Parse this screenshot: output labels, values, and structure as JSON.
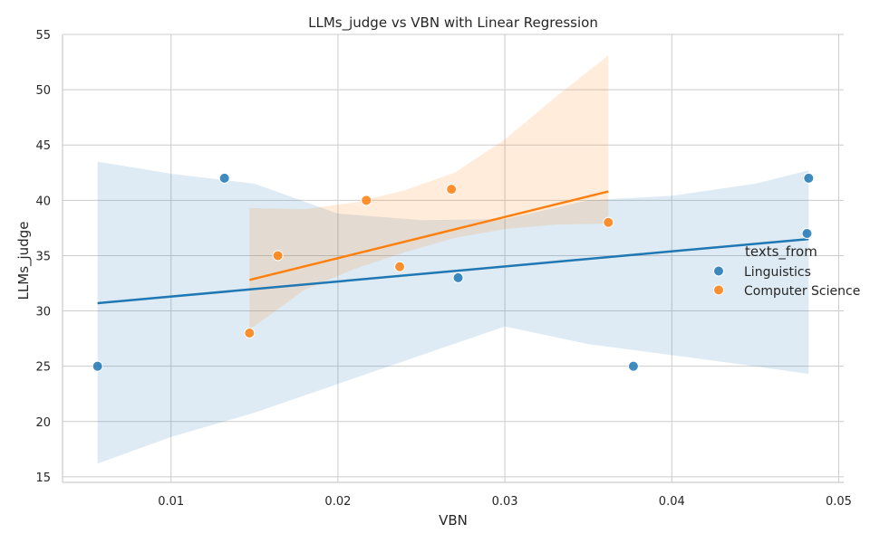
{
  "chart_data": {
    "type": "scatter",
    "title": "LLMs_judge vs VBN with Linear Regression",
    "xlabel": "VBN",
    "ylabel": "LLMs_judge",
    "xlim": [
      0.0035,
      0.0503
    ],
    "ylim": [
      14.5,
      55
    ],
    "xticks": [
      0.01,
      0.02,
      0.03,
      0.04,
      0.05
    ],
    "xtick_labels": [
      "0.01",
      "0.02",
      "0.03",
      "0.04",
      "0.05"
    ],
    "yticks": [
      15,
      20,
      25,
      30,
      35,
      40,
      45,
      50,
      55
    ],
    "ytick_labels": [
      "15",
      "20",
      "25",
      "30",
      "35",
      "40",
      "45",
      "50",
      "55"
    ],
    "grid": true,
    "legend": {
      "title": "texts_from",
      "placement": "right"
    },
    "series": [
      {
        "name": "Linguistics",
        "color": "#1f77b4",
        "points": [
          {
            "x": 0.0056,
            "y": 25
          },
          {
            "x": 0.0132,
            "y": 42
          },
          {
            "x": 0.0272,
            "y": 33
          },
          {
            "x": 0.0377,
            "y": 25
          },
          {
            "x": 0.0481,
            "y": 37
          },
          {
            "x": 0.0482,
            "y": 42
          }
        ],
        "regression": {
          "x": [
            0.0056,
            0.0482
          ],
          "y": [
            30.7,
            36.5
          ]
        },
        "ci_band": {
          "x": [
            0.0056,
            0.01,
            0.015,
            0.02,
            0.025,
            0.03,
            0.035,
            0.04,
            0.045,
            0.0482
          ],
          "upper": [
            43.5,
            42.4,
            41.5,
            38.8,
            38.2,
            38.3,
            40.0,
            40.4,
            41.5,
            42.7
          ],
          "lower": [
            16.2,
            18.6,
            20.8,
            23.4,
            26.0,
            28.6,
            27.0,
            26.0,
            25.0,
            24.3
          ]
        }
      },
      {
        "name": "Computer Science",
        "color": "#ff7f0e",
        "points": [
          {
            "x": 0.0147,
            "y": 28
          },
          {
            "x": 0.0164,
            "y": 35
          },
          {
            "x": 0.0217,
            "y": 40
          },
          {
            "x": 0.0237,
            "y": 34
          },
          {
            "x": 0.0268,
            "y": 41
          },
          {
            "x": 0.0362,
            "y": 38
          }
        ],
        "regression": {
          "x": [
            0.0147,
            0.0362
          ],
          "y": [
            32.8,
            40.8
          ]
        },
        "ci_band": {
          "x": [
            0.0147,
            0.018,
            0.021,
            0.024,
            0.027,
            0.03,
            0.033,
            0.0362
          ],
          "upper": [
            39.3,
            39.2,
            39.8,
            40.9,
            42.5,
            45.5,
            49.3,
            53.1
          ],
          "lower": [
            28.3,
            31.9,
            33.8,
            35.3,
            36.6,
            37.4,
            37.8,
            37.9
          ]
        }
      }
    ]
  }
}
